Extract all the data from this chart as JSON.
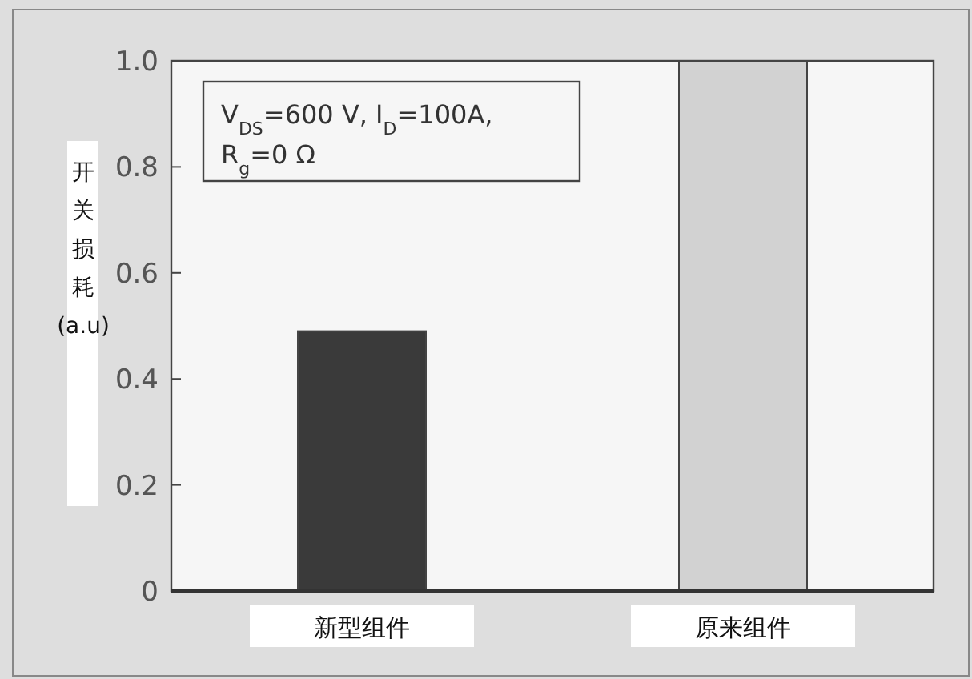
{
  "chart_data": {
    "type": "bar",
    "ylabel": "开关损耗(a.u)",
    "categories": [
      "新型组件",
      "原来组件"
    ],
    "values": [
      0.49,
      1.0
    ],
    "colors": [
      "#3a3a3a",
      "#d2d2d2"
    ],
    "ylim": [
      0,
      1
    ],
    "yticks": [
      {
        "value": 0,
        "label": "0"
      },
      0.2,
      0.4,
      0.6,
      0.8,
      {
        "value": 1,
        "label": "1.0"
      }
    ],
    "annotations": [
      "V$_{DS}$=600 V, I$_{D}$=100A,\nR$_{g}$=0 Ω"
    ]
  }
}
